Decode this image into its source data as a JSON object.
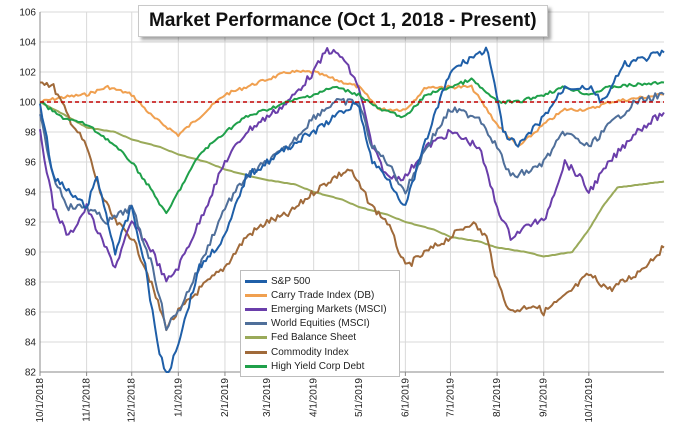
{
  "chart_data": {
    "type": "line",
    "title": "Market Performance (Oct 1, 2018 - Present)",
    "xlabel": "",
    "ylabel": "",
    "ylim": [
      82,
      106
    ],
    "yticks": [
      82,
      84,
      86,
      88,
      90,
      92,
      94,
      96,
      98,
      100,
      102,
      104,
      106
    ],
    "xticks": [
      "10/1/2018",
      "11/1/2018",
      "12/1/2018",
      "1/1/2019",
      "2/1/2019",
      "3/1/2019",
      "4/1/2019",
      "5/1/2019",
      "6/1/2019",
      "7/1/2019",
      "8/1/2019",
      "9/1/2019",
      "10/1/2019"
    ],
    "xlim": [
      "10/1/2018",
      "11/20/2019"
    ],
    "grid": true,
    "legend_position": "bottom-center",
    "reference_line": {
      "y": 100,
      "color": "#c00000",
      "style": "dashed"
    },
    "series": [
      {
        "name": "S&P 500",
        "color": "#1f5fa8",
        "points": [
          [
            "10/1/2018",
            100
          ],
          [
            "10/10/2018",
            95
          ],
          [
            "10/20/2018",
            94
          ],
          [
            "11/1/2018",
            93
          ],
          [
            "11/8/2018",
            95
          ],
          [
            "11/20/2018",
            90
          ],
          [
            "12/1/2018",
            93
          ],
          [
            "12/10/2018",
            89
          ],
          [
            "12/18/2018",
            84
          ],
          [
            "12/24/2018",
            81.5
          ],
          [
            "1/1/2019",
            84
          ],
          [
            "1/15/2019",
            89
          ],
          [
            "2/1/2019",
            91
          ],
          [
            "2/15/2019",
            95
          ],
          [
            "3/1/2019",
            96
          ],
          [
            "3/15/2019",
            97
          ],
          [
            "4/1/2019",
            98
          ],
          [
            "4/15/2019",
            99
          ],
          [
            "4/30/2019",
            100
          ],
          [
            "5/10/2019",
            96
          ],
          [
            "5/20/2019",
            95
          ],
          [
            "6/1/2019",
            93
          ],
          [
            "6/10/2019",
            96
          ],
          [
            "6/20/2019",
            99
          ],
          [
            "7/1/2019",
            102
          ],
          [
            "7/15/2019",
            103
          ],
          [
            "7/26/2019",
            103.5
          ],
          [
            "8/5/2019",
            98
          ],
          [
            "8/15/2019",
            97
          ],
          [
            "9/1/2019",
            99
          ],
          [
            "9/15/2019",
            101
          ],
          [
            "10/1/2019",
            101
          ],
          [
            "10/10/2019",
            100
          ],
          [
            "10/25/2019",
            102.5
          ],
          [
            "11/20/2019",
            103.3
          ]
        ]
      },
      {
        "name": "Carry Trade Index (DB)",
        "color": "#f0a050",
        "points": [
          [
            "10/1/2018",
            100
          ],
          [
            "10/15/2018",
            100.3
          ],
          [
            "11/1/2018",
            100.5
          ],
          [
            "11/15/2018",
            101
          ],
          [
            "12/1/2018",
            100.5
          ],
          [
            "12/15/2018",
            99
          ],
          [
            "1/1/2019",
            97.8
          ],
          [
            "1/15/2019",
            99
          ],
          [
            "2/1/2019",
            100.5
          ],
          [
            "2/15/2019",
            101
          ],
          [
            "3/1/2019",
            101.5
          ],
          [
            "3/15/2019",
            102
          ],
          [
            "4/1/2019",
            102
          ],
          [
            "4/15/2019",
            101.5
          ],
          [
            "5/1/2019",
            101
          ],
          [
            "5/15/2019",
            99.5
          ],
          [
            "6/1/2019",
            99.5
          ],
          [
            "6/15/2019",
            101
          ],
          [
            "7/1/2019",
            101
          ],
          [
            "7/15/2019",
            101
          ],
          [
            "8/1/2019",
            98.5
          ],
          [
            "8/15/2019",
            97
          ],
          [
            "9/1/2019",
            98.5
          ],
          [
            "9/15/2019",
            99.5
          ],
          [
            "10/1/2019",
            99.5
          ],
          [
            "10/15/2019",
            100
          ],
          [
            "11/20/2019",
            100.5
          ]
        ]
      },
      {
        "name": "Emerging Markets (MSCI)",
        "color": "#6a3eaa",
        "points": [
          [
            "10/1/2018",
            98
          ],
          [
            "10/10/2018",
            93
          ],
          [
            "10/20/2018",
            91
          ],
          [
            "11/1/2018",
            93
          ],
          [
            "11/10/2018",
            91
          ],
          [
            "11/20/2018",
            89
          ],
          [
            "12/1/2018",
            92
          ],
          [
            "12/15/2018",
            90
          ],
          [
            "12/24/2018",
            88
          ],
          [
            "1/1/2019",
            89
          ],
          [
            "1/15/2019",
            92
          ],
          [
            "2/1/2019",
            96
          ],
          [
            "2/15/2019",
            98
          ],
          [
            "3/1/2019",
            99
          ],
          [
            "3/15/2019",
            100
          ],
          [
            "4/1/2019",
            102
          ],
          [
            "4/10/2019",
            103.5
          ],
          [
            "4/20/2019",
            103
          ],
          [
            "5/1/2019",
            101
          ],
          [
            "5/10/2019",
            97
          ],
          [
            "5/20/2019",
            95
          ],
          [
            "6/1/2019",
            95
          ],
          [
            "6/15/2019",
            97
          ],
          [
            "7/1/2019",
            98
          ],
          [
            "7/20/2019",
            97
          ],
          [
            "8/1/2019",
            93
          ],
          [
            "8/10/2019",
            91
          ],
          [
            "8/25/2019",
            92
          ],
          [
            "9/1/2019",
            92
          ],
          [
            "9/15/2019",
            96
          ],
          [
            "9/25/2019",
            95
          ],
          [
            "10/1/2019",
            94
          ],
          [
            "10/15/2019",
            96
          ],
          [
            "11/1/2019",
            98
          ],
          [
            "11/20/2019",
            99.3
          ]
        ]
      },
      {
        "name": "World Equities (MSCI)",
        "color": "#4f6f9a",
        "points": [
          [
            "10/1/2018",
            99
          ],
          [
            "10/10/2018",
            95
          ],
          [
            "10/20/2018",
            93
          ],
          [
            "11/1/2018",
            93
          ],
          [
            "11/15/2018",
            92
          ],
          [
            "12/1/2018",
            93
          ],
          [
            "12/15/2018",
            89
          ],
          [
            "12/24/2018",
            85
          ],
          [
            "1/1/2019",
            86
          ],
          [
            "1/15/2019",
            89
          ],
          [
            "2/1/2019",
            93
          ],
          [
            "2/15/2019",
            95
          ],
          [
            "3/1/2019",
            96
          ],
          [
            "3/15/2019",
            97
          ],
          [
            "4/1/2019",
            99
          ],
          [
            "4/15/2019",
            100
          ],
          [
            "5/1/2019",
            100
          ],
          [
            "5/10/2019",
            97
          ],
          [
            "5/20/2019",
            96
          ],
          [
            "6/1/2019",
            94
          ],
          [
            "6/15/2019",
            97
          ],
          [
            "7/1/2019",
            99.5
          ],
          [
            "7/20/2019",
            99
          ],
          [
            "8/1/2019",
            97
          ],
          [
            "8/10/2019",
            95
          ],
          [
            "8/25/2019",
            95.5
          ],
          [
            "9/1/2019",
            96
          ],
          [
            "9/15/2019",
            98
          ],
          [
            "10/1/2019",
            97
          ],
          [
            "10/15/2019",
            98.5
          ],
          [
            "11/1/2019",
            100
          ],
          [
            "11/20/2019",
            100.5
          ]
        ]
      },
      {
        "name": "Fed Balance Sheet",
        "color": "#9aaa5a",
        "points": [
          [
            "10/1/2018",
            100
          ],
          [
            "10/20/2018",
            99
          ],
          [
            "11/1/2018",
            98.3
          ],
          [
            "11/20/2018",
            98
          ],
          [
            "12/1/2018",
            97.5
          ],
          [
            "12/20/2018",
            97
          ],
          [
            "1/1/2019",
            96.5
          ],
          [
            "1/20/2019",
            96
          ],
          [
            "2/1/2019",
            95.5
          ],
          [
            "2/20/2019",
            95
          ],
          [
            "3/1/2019",
            94.8
          ],
          [
            "3/20/2019",
            94.5
          ],
          [
            "4/1/2019",
            94
          ],
          [
            "4/20/2019",
            93.5
          ],
          [
            "5/1/2019",
            93
          ],
          [
            "5/20/2019",
            92.5
          ],
          [
            "6/1/2019",
            92
          ],
          [
            "6/20/2019",
            91.5
          ],
          [
            "7/1/2019",
            91
          ],
          [
            "7/20/2019",
            90.7
          ],
          [
            "8/1/2019",
            90.3
          ],
          [
            "8/20/2019",
            90
          ],
          [
            "9/1/2019",
            89.7
          ],
          [
            "9/20/2019",
            90
          ],
          [
            "10/1/2019",
            91.5
          ],
          [
            "10/10/2019",
            93
          ],
          [
            "10/20/2019",
            94.3
          ],
          [
            "11/20/2019",
            94.7
          ]
        ]
      },
      {
        "name": "Commodity Index",
        "color": "#a06a3a",
        "points": [
          [
            "10/1/2018",
            101.5
          ],
          [
            "10/10/2018",
            101
          ],
          [
            "10/20/2018",
            99
          ],
          [
            "11/1/2018",
            97
          ],
          [
            "11/10/2018",
            94
          ],
          [
            "11/20/2018",
            92
          ],
          [
            "12/1/2018",
            91
          ],
          [
            "12/10/2018",
            89
          ],
          [
            "12/24/2018",
            85
          ],
          [
            "1/1/2019",
            86
          ],
          [
            "1/15/2019",
            87.5
          ],
          [
            "2/1/2019",
            89
          ],
          [
            "2/15/2019",
            91
          ],
          [
            "3/1/2019",
            92
          ],
          [
            "3/15/2019",
            92.5
          ],
          [
            "4/1/2019",
            94
          ],
          [
            "4/15/2019",
            95
          ],
          [
            "4/25/2019",
            95.5
          ],
          [
            "5/10/2019",
            93
          ],
          [
            "5/20/2019",
            92
          ],
          [
            "6/1/2019",
            89
          ],
          [
            "6/15/2019",
            90
          ],
          [
            "7/1/2019",
            91
          ],
          [
            "7/15/2019",
            92
          ],
          [
            "7/25/2019",
            91
          ],
          [
            "8/1/2019",
            88
          ],
          [
            "8/10/2019",
            86
          ],
          [
            "8/25/2019",
            86.5
          ],
          [
            "9/1/2019",
            86
          ],
          [
            "9/15/2019",
            87
          ],
          [
            "10/1/2019",
            88.5
          ],
          [
            "10/15/2019",
            87.5
          ],
          [
            "11/1/2019",
            88.5
          ],
          [
            "11/20/2019",
            90.3
          ]
        ]
      },
      {
        "name": "High Yield Corp Debt",
        "color": "#1fa04a",
        "points": [
          [
            "10/1/2018",
            100
          ],
          [
            "10/15/2018",
            99
          ],
          [
            "11/1/2018",
            98.5
          ],
          [
            "11/15/2018",
            97.5
          ],
          [
            "12/1/2018",
            96
          ],
          [
            "12/15/2018",
            94
          ],
          [
            "12/24/2018",
            92.5
          ],
          [
            "1/1/2019",
            94
          ],
          [
            "1/15/2019",
            96.5
          ],
          [
            "2/1/2019",
            98
          ],
          [
            "2/15/2019",
            99
          ],
          [
            "3/1/2019",
            99.5
          ],
          [
            "3/15/2019",
            100
          ],
          [
            "4/1/2019",
            100.5
          ],
          [
            "4/15/2019",
            101
          ],
          [
            "5/1/2019",
            100.5
          ],
          [
            "5/15/2019",
            99.5
          ],
          [
            "6/1/2019",
            99
          ],
          [
            "6/15/2019",
            100.5
          ],
          [
            "7/1/2019",
            101
          ],
          [
            "7/15/2019",
            101.5
          ],
          [
            "8/1/2019",
            100
          ],
          [
            "8/15/2019",
            100
          ],
          [
            "9/1/2019",
            100.5
          ],
          [
            "9/15/2019",
            101
          ],
          [
            "10/1/2019",
            100.5
          ],
          [
            "10/15/2019",
            101
          ],
          [
            "11/20/2019",
            101.3
          ]
        ]
      }
    ]
  }
}
